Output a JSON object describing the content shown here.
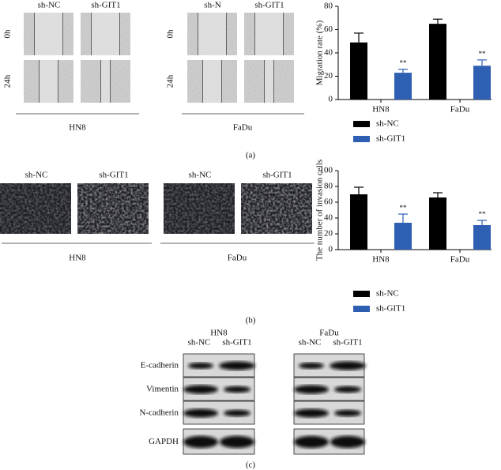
{
  "chart_data": [
    {
      "type": "bar",
      "y_label": "Migration rate (%)",
      "categories": [
        "HN8",
        "FaDu"
      ],
      "series": [
        {
          "name": "sh-NC",
          "color": "#000000",
          "values": [
            49,
            65
          ],
          "errors": [
            8,
            4
          ]
        },
        {
          "name": "sh-GIT1",
          "color": "#2f5fb3",
          "values": [
            23,
            29
          ],
          "errors": [
            3,
            5
          ],
          "annotations": [
            "**",
            "**"
          ]
        }
      ],
      "ylim": [
        0,
        80
      ],
      "yticks": [
        0,
        20,
        40,
        60,
        80
      ]
    },
    {
      "type": "bar",
      "y_label": "The number of invasion cells",
      "categories": [
        "HN8",
        "FaDu"
      ],
      "series": [
        {
          "name": "sh-NC",
          "color": "#000000",
          "values": [
            70,
            66
          ],
          "errors": [
            9,
            6
          ]
        },
        {
          "name": "sh-GIT1",
          "color": "#2f5fb3",
          "values": [
            34,
            31
          ],
          "errors": [
            11,
            6
          ],
          "annotations": [
            "**",
            "**"
          ]
        }
      ],
      "ylim": [
        0,
        100
      ],
      "yticks": [
        0,
        20,
        40,
        60,
        80,
        100
      ]
    }
  ],
  "panel_a": {
    "label": "(a)",
    "groups": [
      {
        "cell_line": "HN8",
        "columns": [
          "sh-NC",
          "sh-GIT1"
        ],
        "rows": [
          "0h",
          "24h"
        ]
      },
      {
        "cell_line": "FaDu",
        "columns": [
          "sh-N",
          "sh-GIT1"
        ],
        "rows": [
          "0h",
          "24h"
        ]
      }
    ]
  },
  "panel_b": {
    "label": "(b)",
    "groups": [
      {
        "cell_line": "HN8",
        "columns": [
          "sh-NC",
          "sh-GIT1"
        ]
      },
      {
        "cell_line": "FaDu",
        "columns": [
          "sh-NC",
          "sh-GIT1"
        ]
      }
    ]
  },
  "panel_c": {
    "label": "(c)",
    "proteins": [
      "E-cadherin",
      "Vimentin",
      "N-cadherin",
      "GAPDH"
    ],
    "groups": [
      {
        "cell_line": "HN8",
        "columns": [
          "sh-NC",
          "sh-GIT1"
        ]
      },
      {
        "cell_line": "FaDu",
        "columns": [
          "sh-NC",
          "sh-GIT1"
        ]
      }
    ]
  }
}
